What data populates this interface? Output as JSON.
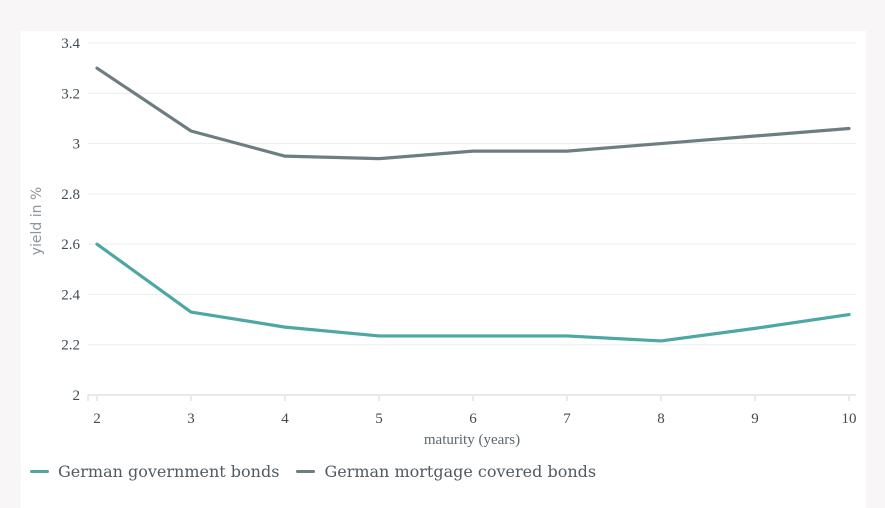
{
  "page": {
    "background_color": "#f8f6f6",
    "card_color": "#ffffff"
  },
  "chart_data": {
    "type": "line",
    "title": "",
    "xlabel": "maturity (years)",
    "ylabel": "yield in %",
    "x": [
      2,
      3,
      4,
      5,
      6,
      7,
      8,
      9,
      10
    ],
    "x_tick_labels": [
      "2",
      "3",
      "4",
      "5",
      "6",
      "7",
      "8",
      "9",
      "10"
    ],
    "y_ticks": [
      2,
      2.2,
      2.4,
      2.6,
      2.8,
      3,
      3.2,
      3.4
    ],
    "y_tick_labels": [
      "2",
      "2.2",
      "2.4",
      "2.6",
      "2.8",
      "3",
      "3.2",
      "3.4"
    ],
    "xlim": [
      2,
      10
    ],
    "ylim": [
      2,
      3.4
    ],
    "grid": true,
    "legend_position": "bottom-left",
    "series": [
      {
        "name": "German government bonds",
        "color": "#4da7a2",
        "values": [
          2.6,
          2.33,
          2.27,
          2.235,
          2.235,
          2.235,
          2.215,
          2.265,
          2.32
        ]
      },
      {
        "name": "German mortgage covered bonds",
        "color": "#6d7e81",
        "values": [
          3.3,
          3.05,
          2.95,
          2.94,
          2.97,
          2.97,
          3.0,
          3.03,
          3.06
        ]
      }
    ],
    "style": {
      "grid_color": "#ededed",
      "axis_line_color": "#d6d6d6",
      "tick_color": "#d6d6d6",
      "tick_label_color": "#414b54",
      "line_width": 3.2
    }
  }
}
